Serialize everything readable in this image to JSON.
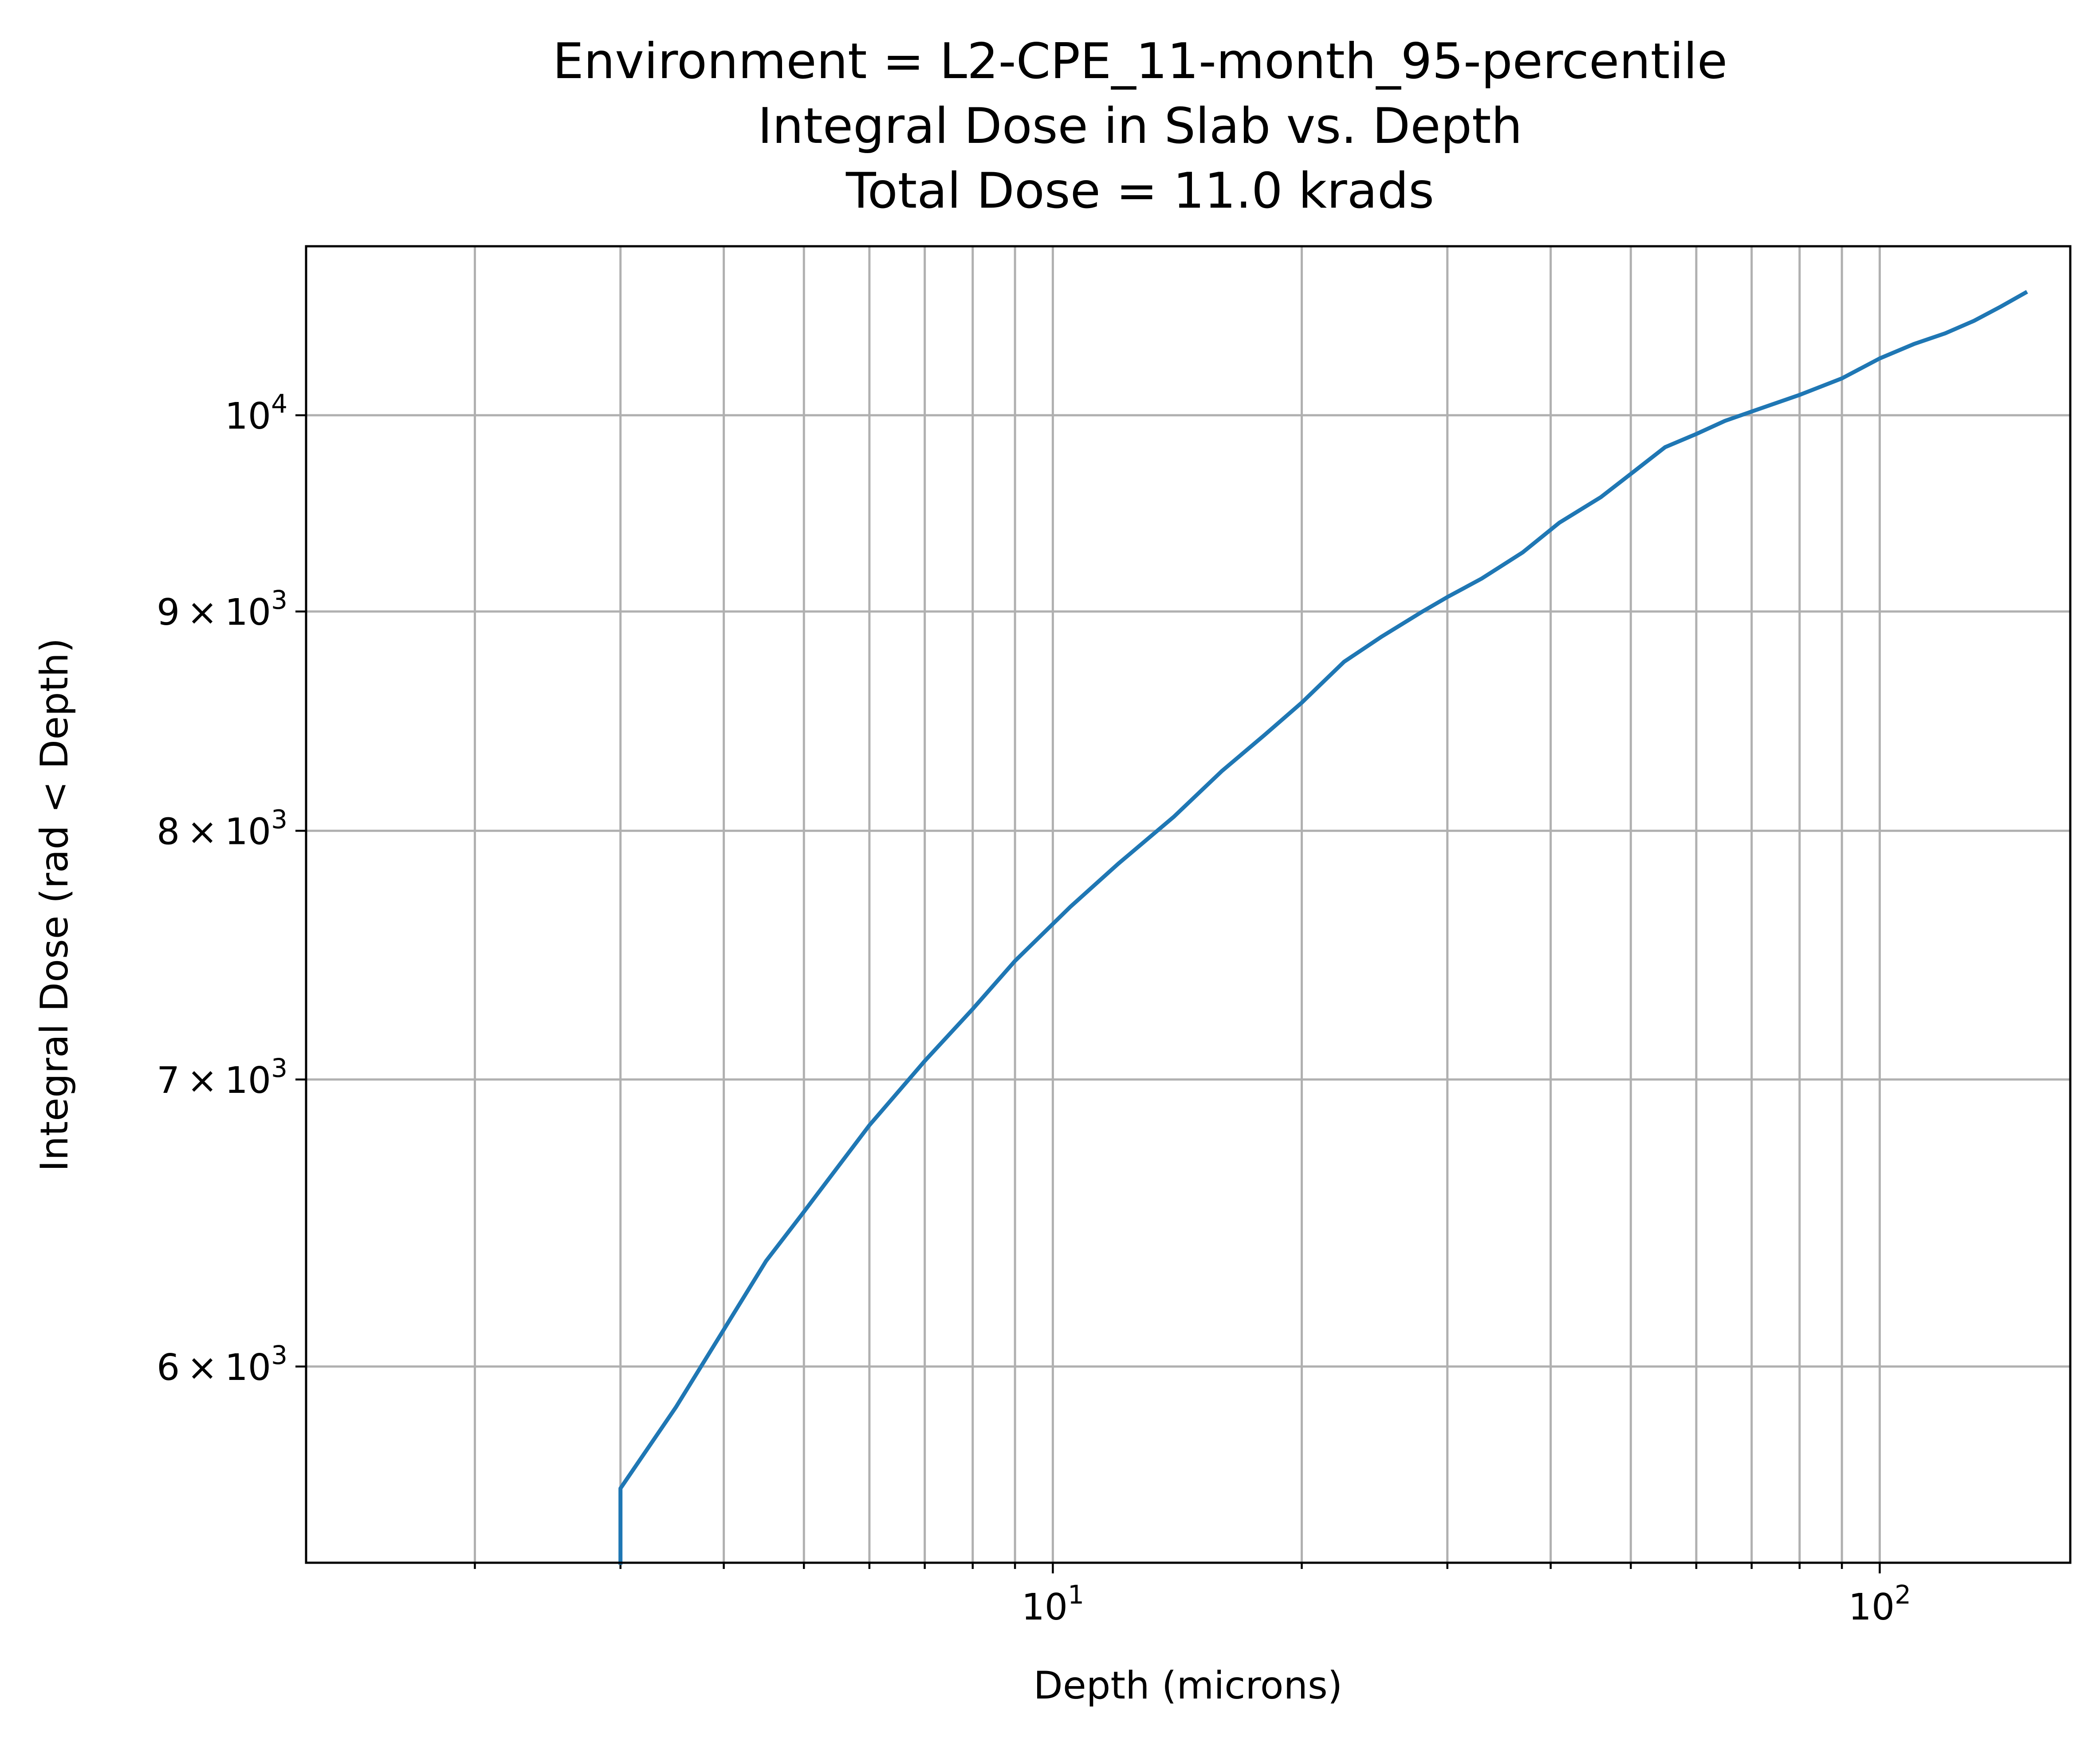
{
  "chart_data": {
    "type": "line",
    "title": [
      "Environment = L2-CPE_11-month_95-percentile",
      "Integral Dose in Slab vs. Depth",
      "Total Dose = 11.0 krads"
    ],
    "xlabel": "Depth (microns)",
    "ylabel": "Integral Dose (rad < Depth)",
    "xscale": "log",
    "yscale": "log",
    "xlim": [
      1.25,
      170
    ],
    "ylim": [
      5400,
      10950
    ],
    "grid": true,
    "x_ticks": [
      {
        "value": 10,
        "base": "10",
        "exp": "1"
      },
      {
        "value": 100,
        "base": "10",
        "exp": "2"
      }
    ],
    "y_ticks": [
      {
        "value": 6000,
        "mant": "6",
        "base": "10",
        "exp": "3"
      },
      {
        "value": 7000,
        "mant": "7",
        "base": "10",
        "exp": "3"
      },
      {
        "value": 8000,
        "mant": "8",
        "base": "10",
        "exp": "3"
      },
      {
        "value": 9000,
        "mant": "9",
        "base": "10",
        "exp": "3"
      },
      {
        "value": 10000,
        "mant": "",
        "base": "10",
        "exp": "4"
      }
    ],
    "series": [
      {
        "color": "#1f77b4",
        "x": [
          3.0,
          3.0,
          3.5,
          4.0,
          4.5,
          5.0,
          6.0,
          7.0,
          8.0,
          9.0,
          10.5,
          12.0,
          14.0,
          16.0,
          18.0,
          20.0,
          22.5,
          25.0,
          28.0,
          30.0,
          33.0,
          37.0,
          41.0,
          46.0,
          50.0,
          55.0,
          60.0,
          65.0,
          70.0,
          80.0,
          90.0,
          100.0,
          110.0,
          120.0,
          130.0,
          140.0,
          150.0
        ],
        "values": [
          5400,
          5620,
          5870,
          6120,
          6350,
          6520,
          6830,
          7070,
          7270,
          7460,
          7680,
          7860,
          8060,
          8260,
          8420,
          8570,
          8760,
          8880,
          9000,
          9070,
          9160,
          9290,
          9440,
          9570,
          9690,
          9830,
          9900,
          9970,
          10020,
          10110,
          10200,
          10310,
          10390,
          10450,
          10520,
          10600,
          10680
        ]
      }
    ]
  }
}
